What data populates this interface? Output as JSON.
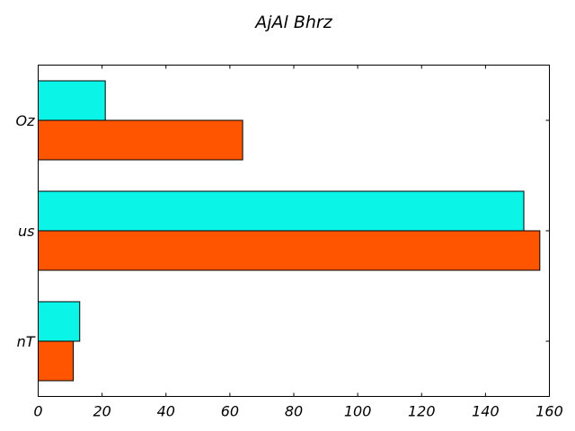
{
  "chart_data": {
    "type": "bar",
    "orientation": "horizontal",
    "title": "AjAl Bhrz",
    "xlabel": "",
    "ylabel": "",
    "categories": [
      "nT",
      "us",
      "Oz"
    ],
    "series": [
      {
        "color": "#ff5500",
        "values": [
          11,
          157,
          64
        ]
      },
      {
        "color": "#0af5e8",
        "values": [
          13,
          152,
          21
        ]
      }
    ],
    "xlim": [
      0,
      160
    ],
    "xticks": [
      0,
      20,
      40,
      60,
      80,
      100,
      120,
      140,
      160
    ],
    "xtick_labels": [
      "0",
      "20",
      "40",
      "60",
      "80",
      "100",
      "120",
      "140",
      "160"
    ],
    "grid": false,
    "legend": "none"
  }
}
